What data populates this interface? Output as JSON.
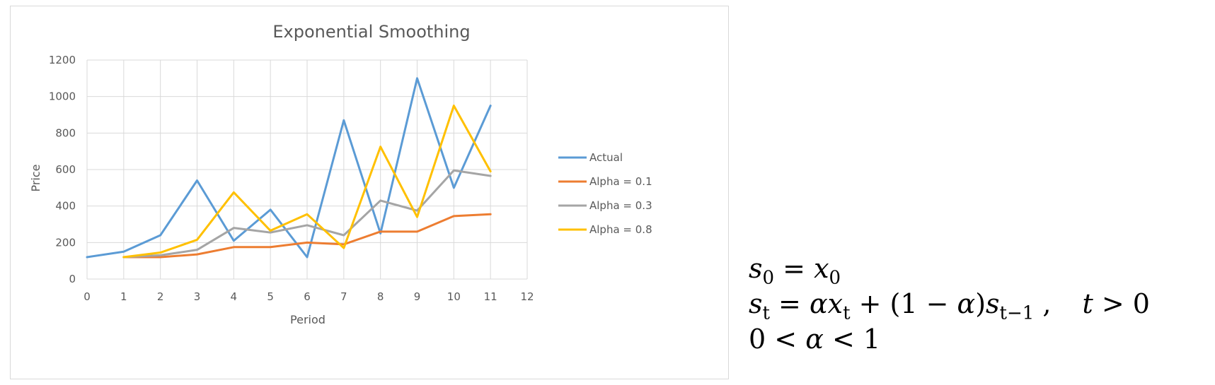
{
  "chart_data": {
    "type": "line",
    "title": "Exponential Smoothing",
    "xlabel": "Period",
    "ylabel": "Price",
    "x": [
      0,
      1,
      2,
      3,
      4,
      5,
      6,
      7,
      8,
      9,
      10,
      11
    ],
    "x_ticks": [
      "0",
      "1",
      "2",
      "3",
      "4",
      "5",
      "6",
      "7",
      "8",
      "9",
      "10",
      "11",
      "12"
    ],
    "xlim": [
      0,
      12
    ],
    "y_ticks": [
      "0",
      "200",
      "400",
      "600",
      "800",
      "1000",
      "1200"
    ],
    "ylim": [
      0,
      1200
    ],
    "grid": true,
    "legend_position": "right",
    "series": [
      {
        "name": "Actual",
        "color": "#5b9bd5",
        "x": [
          0,
          1,
          2,
          3,
          4,
          5,
          6,
          7,
          8,
          9,
          10,
          11
        ],
        "values": [
          120,
          150,
          240,
          540,
          210,
          380,
          120,
          870,
          250,
          1100,
          500,
          950
        ]
      },
      {
        "name": "Alpha = 0.1",
        "color": "#ed7d31",
        "x": [
          1,
          2,
          3,
          4,
          5,
          6,
          7,
          8,
          9,
          10,
          11
        ],
        "values": [
          120,
          120,
          135,
          175,
          175,
          200,
          190,
          260,
          260,
          345,
          355
        ]
      },
      {
        "name": "Alpha = 0.3",
        "color": "#a5a5a5",
        "x": [
          1,
          2,
          3,
          4,
          5,
          6,
          7,
          8,
          9,
          10,
          11
        ],
        "values": [
          120,
          130,
          160,
          280,
          255,
          295,
          240,
          430,
          375,
          595,
          565
        ]
      },
      {
        "name": "Alpha = 0.8",
        "color": "#ffc000",
        "x": [
          1,
          2,
          3,
          4,
          5,
          6,
          7,
          8,
          9,
          10,
          11
        ],
        "values": [
          120,
          145,
          215,
          475,
          265,
          355,
          170,
          725,
          340,
          950,
          590
        ]
      }
    ]
  },
  "formulas": {
    "line1": {
      "s": "s",
      "s_sub": "0",
      "eq": " = ",
      "x": "x",
      "x_sub": "0"
    },
    "line2": {
      "s": "s",
      "s_sub": "t",
      "eq": " = ",
      "alpha1": "α",
      "x": "x",
      "x_sub": "t",
      "mid": " + (1 − ",
      "alpha2": "α",
      "close": ")",
      "s2": "s",
      "s2_sub": "t−1",
      "comma": " ,",
      "cond_t": "t",
      "cond": " > 0"
    },
    "line3": {
      "zero": "0 < ",
      "alpha": "α",
      "rest": " < 1"
    }
  }
}
